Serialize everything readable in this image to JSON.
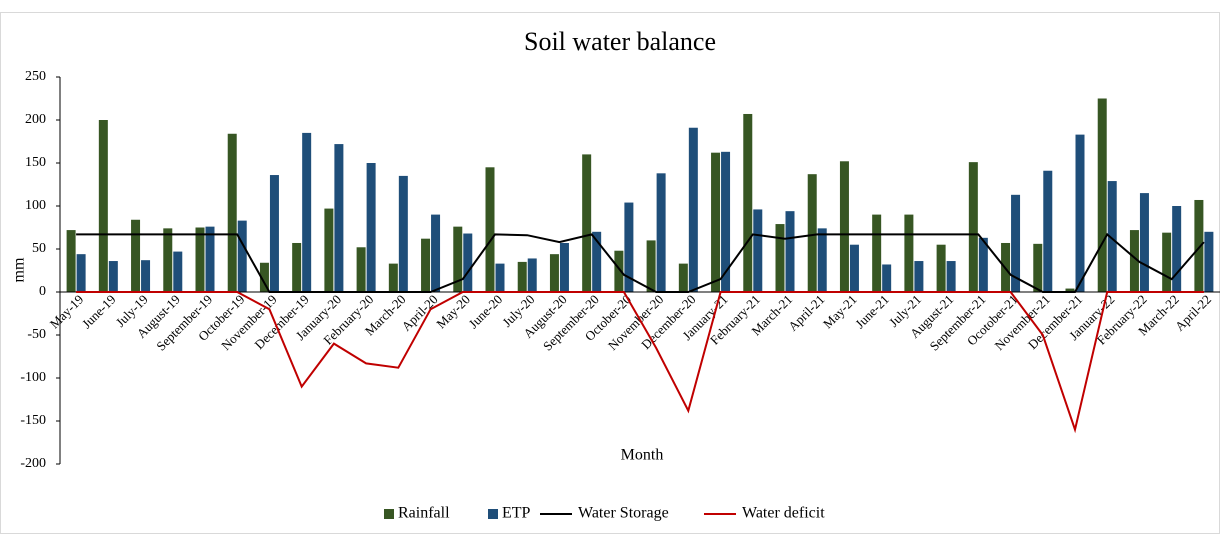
{
  "chart_data": {
    "type": "bar",
    "title": "Soil water balance",
    "x_label": "Month",
    "y_label": "mm",
    "categories": [
      "May-19",
      "June-19",
      "July-19",
      "August-19",
      "September-19",
      "October-19",
      "November-19",
      "December-19",
      "January-20",
      "February-20",
      "March-20",
      "April-20",
      "May-20",
      "June-20",
      "July-20",
      "August-20",
      "September-20",
      "October-20",
      "November-20",
      "December-20",
      "January-21",
      "February-21",
      "March-21",
      "April-21",
      "May-21",
      "June-21",
      "July-21",
      "August-21",
      "September-21",
      "Ocotober-21",
      "November-21",
      "December-21",
      "January-22",
      "February-22",
      "March-22",
      "April-22"
    ],
    "series": [
      {
        "name": "Rainfall",
        "type": "bar",
        "color": "#375623",
        "values": [
          72,
          200,
          84,
          74,
          75,
          184,
          34,
          57,
          97,
          52,
          33,
          62,
          76,
          145,
          35,
          44,
          160,
          48,
          60,
          33,
          162,
          207,
          79,
          137,
          152,
          90,
          90,
          55,
          151,
          57,
          56,
          4,
          225,
          72,
          69,
          107
        ]
      },
      {
        "name": "ETP",
        "type": "bar",
        "color": "#1f4e79",
        "values": [
          44,
          36,
          37,
          47,
          76,
          83,
          136,
          185,
          172,
          150,
          135,
          90,
          68,
          33,
          39,
          57,
          70,
          104,
          138,
          191,
          163,
          96,
          94,
          74,
          55,
          32,
          36,
          36,
          63,
          113,
          141,
          183,
          129,
          115,
          100,
          70
        ]
      },
      {
        "name": "Water Storage",
        "type": "line",
        "color": "#000000",
        "values": [
          67,
          67,
          67,
          67,
          67,
          67,
          0,
          0,
          0,
          0,
          0,
          0,
          15,
          67,
          66,
          58,
          67,
          20,
          0,
          0,
          15,
          67,
          62,
          67,
          67,
          67,
          67,
          67,
          67,
          20,
          0,
          0,
          67,
          35,
          15,
          58
        ]
      },
      {
        "name": "Water deficit",
        "type": "line",
        "color": "#c00000",
        "values": [
          0,
          0,
          0,
          0,
          0,
          0,
          -20,
          -110,
          -60,
          -83,
          -88,
          -20,
          0,
          0,
          0,
          0,
          0,
          0,
          -65,
          -138,
          0,
          0,
          0,
          0,
          0,
          0,
          0,
          0,
          0,
          0,
          -50,
          -160,
          0,
          0,
          0,
          0
        ]
      }
    ],
    "ylim": [
      -200,
      250
    ],
    "yticks": [
      -200,
      -150,
      -100,
      -50,
      0,
      50,
      100,
      150,
      200,
      250
    ]
  }
}
